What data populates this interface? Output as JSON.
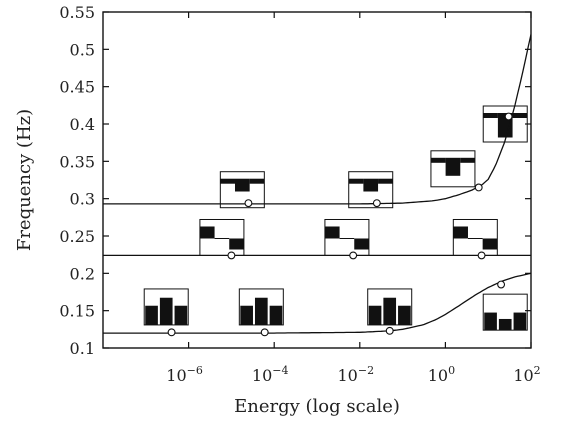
{
  "chart_data": {
    "type": "line",
    "title": "",
    "xlabel": "Energy (log scale)",
    "ylabel": "Frequency (Hz)",
    "xscale": "log",
    "xlim": [
      1e-08,
      100
    ],
    "ylim": [
      0.1,
      0.55
    ],
    "x_ticks": [
      {
        "value": 1e-06,
        "base": "10",
        "exp": "−6"
      },
      {
        "value": 0.0001,
        "base": "10",
        "exp": "−4"
      },
      {
        "value": 0.01,
        "base": "10",
        "exp": "−2"
      },
      {
        "value": 1,
        "base": "10",
        "exp": "0"
      },
      {
        "value": 100,
        "base": "10",
        "exp": "2"
      }
    ],
    "y_ticks": [
      "0.1",
      "0.15",
      "0.2",
      "0.25",
      "0.3",
      "0.35",
      "0.4",
      "0.45",
      "0.5",
      "0.55"
    ],
    "grid": false,
    "legend": "none",
    "series": [
      {
        "x": [
          1e-08,
          1e-06,
          0.0001,
          0.01,
          0.05,
          0.1,
          0.3,
          0.6,
          1,
          2,
          5,
          10,
          20,
          40,
          70,
          100
        ],
        "y": [
          0.12,
          0.12,
          0.12,
          0.121,
          0.123,
          0.125,
          0.131,
          0.138,
          0.145,
          0.156,
          0.171,
          0.181,
          0.189,
          0.195,
          0.198,
          0.2
        ]
      },
      {
        "x": [
          1e-08,
          100
        ],
        "y": [
          0.224,
          0.224
        ]
      },
      {
        "x": [
          1e-08,
          0.0001,
          0.01,
          0.1,
          0.5,
          1,
          2,
          4,
          7,
          10,
          15,
          25,
          40,
          60,
          80,
          100
        ],
        "y": [
          0.293,
          0.293,
          0.293,
          0.294,
          0.297,
          0.3,
          0.305,
          0.311,
          0.318,
          0.326,
          0.345,
          0.378,
          0.42,
          0.462,
          0.495,
          0.52
        ]
      }
    ],
    "markers": [
      {
        "x": 4e-07,
        "y": 0.121
      },
      {
        "x": 6e-05,
        "y": 0.121
      },
      {
        "x": 0.05,
        "y": 0.123
      },
      {
        "x": 20,
        "y": 0.185
      },
      {
        "x": 1e-05,
        "y": 0.224
      },
      {
        "x": 0.007,
        "y": 0.224
      },
      {
        "x": 7,
        "y": 0.224
      },
      {
        "x": 2.5e-05,
        "y": 0.294
      },
      {
        "x": 0.025,
        "y": 0.294
      },
      {
        "x": 6,
        "y": 0.315
      },
      {
        "x": 30,
        "y": 0.41
      }
    ],
    "insets": [
      {
        "x": 3e-07,
        "y": 0.155,
        "bars": [
          0.6,
          0.85,
          0.6
        ]
      },
      {
        "x": 5e-05,
        "y": 0.155,
        "bars": [
          0.6,
          0.85,
          0.6
        ]
      },
      {
        "x": 0.05,
        "y": 0.155,
        "bars": [
          0.6,
          0.85,
          0.6
        ]
      },
      {
        "x": 25,
        "y": 0.148,
        "bars": [
          0.55,
          0.35,
          0.55
        ]
      },
      {
        "x": 6e-06,
        "y": 0.248,
        "shape": "step"
      },
      {
        "x": 0.005,
        "y": 0.248,
        "shape": "step"
      },
      {
        "x": 5,
        "y": 0.248,
        "shape": "step"
      },
      {
        "x": 1.8e-05,
        "y": 0.312,
        "shape": "dip",
        "depth": 0.3
      },
      {
        "x": 0.018,
        "y": 0.312,
        "shape": "dip",
        "depth": 0.3
      },
      {
        "x": 1.5,
        "y": 0.34,
        "shape": "dip",
        "depth": 0.5
      },
      {
        "x": 25,
        "y": 0.4,
        "shape": "dip",
        "depth": 0.75
      }
    ]
  }
}
